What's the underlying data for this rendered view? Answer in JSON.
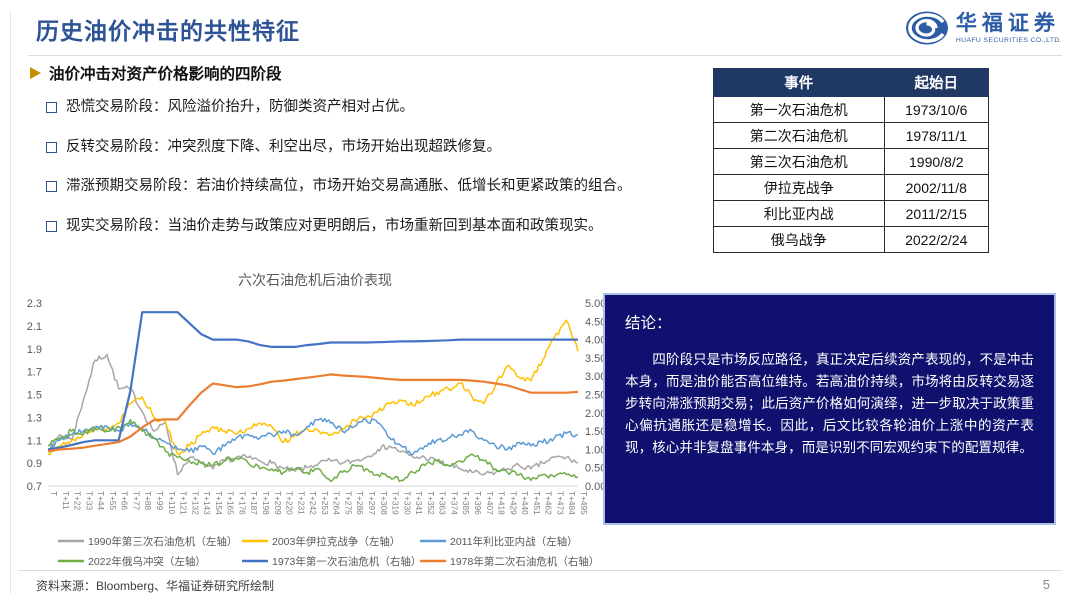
{
  "slide": {
    "title": "历史油价冲击的共性特征",
    "page_number": "5"
  },
  "logo": {
    "name": "华福证券",
    "subtitle": "HUAFU SECURITIES CO.,LTD.",
    "color": "#2d5ca6"
  },
  "section": {
    "heading": "油价冲击对资产价格影响的四阶段",
    "bullets": [
      "恐慌交易阶段：风险溢价抬升，防御类资产相对占优。",
      "反转交易阶段：冲突烈度下降、利空出尽，市场开始出现超跌修复。",
      "滞涨预期交易阶段：若油价持续高位，市场开始交易高通胀、低增长和更紧政策的组合。",
      "现实交易阶段：当油价走势与政策应对更明朗后，市场重新回到基本面和政策现实。"
    ]
  },
  "event_table": {
    "headers": [
      "事件",
      "起始日"
    ],
    "rows": [
      {
        "event": "第一次石油危机",
        "date": "1973/10/6"
      },
      {
        "event": "第二次石油危机",
        "date": "1978/11/1"
      },
      {
        "event": "第三次石油危机",
        "date": "1990/8/2"
      },
      {
        "event": "伊拉克战争",
        "date": "2002/11/8"
      },
      {
        "event": "利比亚内战",
        "date": "2011/2/15"
      },
      {
        "event": "俄乌战争",
        "date": "2022/2/24"
      }
    ],
    "header_bg": "#1f3864"
  },
  "conclusion": {
    "title": "结论：",
    "body": "四阶段只是市场反应路径，真正决定后续资产表现的，不是冲击本身，而是油价能否高位维持。若高油价持续，市场将由反转交易逐步转向滞涨预期交易；此后资产价格如何演绎，进一步取决于政策重心偏抗通胀还是稳增长。因此，后文比较各轮油价上涨中的资产表现，核心并非复盘事件本身，而是识别不同宏观约束下的配置规律。",
    "bg": "#10106e",
    "border": "#a9bfe4"
  },
  "footer": {
    "source": "资料来源：Bloomberg、华福证券研究所绘制"
  },
  "chart_data": {
    "type": "line",
    "title": "六次石油危机后油价表现",
    "grid": false,
    "legend_position": "bottom",
    "left_axis": {
      "min": 0.7,
      "max": 2.3,
      "ticks": [
        "2.3",
        "2.1",
        "1.9",
        "1.7",
        "1.5",
        "1.3",
        "1.1",
        "0.9",
        "0.7"
      ]
    },
    "right_axis": {
      "min": 0,
      "max": 5,
      "ticks": [
        "5.00",
        "4.50",
        "4.00",
        "3.50",
        "3.00",
        "2.50",
        "2.00",
        "1.50",
        "1.00",
        "0.50",
        "0.00"
      ]
    },
    "x_tick_labels": [
      "T",
      "T+11",
      "T+22",
      "T+33",
      "T+44",
      "T+55",
      "T+66",
      "T+77",
      "T+88",
      "T+99",
      "T+110",
      "T+121",
      "T+132",
      "T+143",
      "T+154",
      "T+165",
      "T+176",
      "T+187",
      "T+198",
      "T+209",
      "T+220",
      "T+231",
      "T+242",
      "T+253",
      "T+264",
      "T+275",
      "T+286",
      "T+297",
      "T+308",
      "T+319",
      "T+330",
      "T+341",
      "T+352",
      "T+363",
      "T+374",
      "T+385",
      "T+396",
      "T+407",
      "T+418",
      "T+429",
      "T+440",
      "T+451",
      "T+462",
      "T+473",
      "T+484",
      "T+495"
    ],
    "series": [
      {
        "name": "1990年第三次石油危机（左轴）",
        "color": "#a6a6a6",
        "axis": "left",
        "noisy": true,
        "values": [
          1.0,
          1.15,
          1.1,
          1.45,
          1.8,
          1.85,
          1.55,
          1.55,
          1.35,
          1.18,
          1.25,
          0.8,
          0.95,
          0.9,
          0.85,
          0.92,
          0.95,
          0.95,
          0.92,
          0.9,
          0.85,
          0.83,
          0.86,
          0.9,
          0.92,
          0.9,
          0.92,
          0.95,
          1.02,
          1.05,
          1.0,
          0.95,
          0.95,
          0.92,
          0.88,
          0.85,
          0.82,
          0.8,
          0.82,
          0.85,
          0.88,
          0.85,
          0.9,
          0.95,
          0.95,
          0.9
        ]
      },
      {
        "name": "2003年伊拉克战争（左轴）",
        "color": "#ffc000",
        "axis": "left",
        "noisy": true,
        "values": [
          0.98,
          1.05,
          1.1,
          1.15,
          1.22,
          1.2,
          1.25,
          1.42,
          1.48,
          1.3,
          1.25,
          0.98,
          1.05,
          1.15,
          1.22,
          1.18,
          1.15,
          1.2,
          1.25,
          1.22,
          1.08,
          1.15,
          1.2,
          1.18,
          1.15,
          1.2,
          1.28,
          1.3,
          1.35,
          1.42,
          1.45,
          1.4,
          1.48,
          1.52,
          1.55,
          1.6,
          1.48,
          1.42,
          1.58,
          1.75,
          1.65,
          1.62,
          1.8,
          2.0,
          2.15,
          1.88
        ]
      },
      {
        "name": "2011年利比亚内战（左轴）",
        "color": "#5b9bd5",
        "axis": "left",
        "noisy": true,
        "values": [
          1.02,
          1.1,
          1.15,
          1.18,
          1.2,
          1.22,
          1.18,
          1.25,
          1.2,
          1.12,
          1.08,
          1.02,
          1.0,
          1.05,
          0.98,
          1.05,
          1.12,
          1.15,
          1.12,
          1.15,
          1.18,
          1.15,
          1.22,
          1.28,
          1.25,
          1.18,
          1.22,
          1.28,
          1.25,
          1.12,
          1.05,
          0.98,
          1.05,
          1.1,
          1.12,
          1.15,
          1.18,
          1.1,
          1.05,
          1.02,
          1.08,
          1.05,
          1.08,
          1.12,
          1.16,
          1.15
        ]
      },
      {
        "name": "2022年俄乌冲突（左轴）",
        "color": "#70ad47",
        "axis": "left",
        "noisy": true,
        "values": [
          1.05,
          1.12,
          1.18,
          1.15,
          1.2,
          1.18,
          1.22,
          1.28,
          1.18,
          1.12,
          1.0,
          0.95,
          0.92,
          0.9,
          0.88,
          0.92,
          0.95,
          0.9,
          0.85,
          0.85,
          0.82,
          0.85,
          0.82,
          0.85,
          0.74,
          0.82,
          0.88,
          0.85,
          0.8,
          0.78,
          0.75,
          0.82,
          0.88,
          0.92,
          0.88,
          0.92,
          0.98,
          0.92,
          0.85,
          0.82,
          0.8,
          0.75,
          0.8,
          0.78,
          0.8,
          0.78
        ]
      },
      {
        "name": "1973年第一次石油危机（右轴）",
        "color": "#4472c4",
        "axis": "right",
        "noisy": false,
        "values": [
          1.0,
          1.05,
          1.12,
          1.2,
          1.25,
          1.25,
          1.25,
          2.6,
          4.75,
          4.75,
          4.75,
          4.75,
          4.45,
          4.15,
          4.0,
          4.0,
          4.0,
          3.95,
          3.85,
          3.8,
          3.8,
          3.8,
          3.85,
          3.88,
          3.92,
          3.92,
          3.92,
          3.92,
          3.93,
          3.94,
          3.95,
          3.95,
          3.96,
          3.97,
          3.98,
          4.0,
          4.0,
          4.0,
          4.0,
          4.0,
          4.0,
          4.0,
          4.0,
          4.0,
          4.0,
          4.0
        ]
      },
      {
        "name": "1978年第二次石油危机（右轴）",
        "color": "#ed7d31",
        "axis": "right",
        "noisy": false,
        "values": [
          0.95,
          1.0,
          1.02,
          1.05,
          1.1,
          1.15,
          1.2,
          1.35,
          1.6,
          1.8,
          1.82,
          1.82,
          2.2,
          2.55,
          2.8,
          2.75,
          2.7,
          2.72,
          2.78,
          2.85,
          2.88,
          2.92,
          2.96,
          3.0,
          3.05,
          3.02,
          3.0,
          2.98,
          2.95,
          2.92,
          2.9,
          2.9,
          2.9,
          2.9,
          2.9,
          2.9,
          2.88,
          2.85,
          2.8,
          2.75,
          2.65,
          2.55,
          2.55,
          2.55,
          2.55,
          2.57
        ]
      }
    ]
  }
}
